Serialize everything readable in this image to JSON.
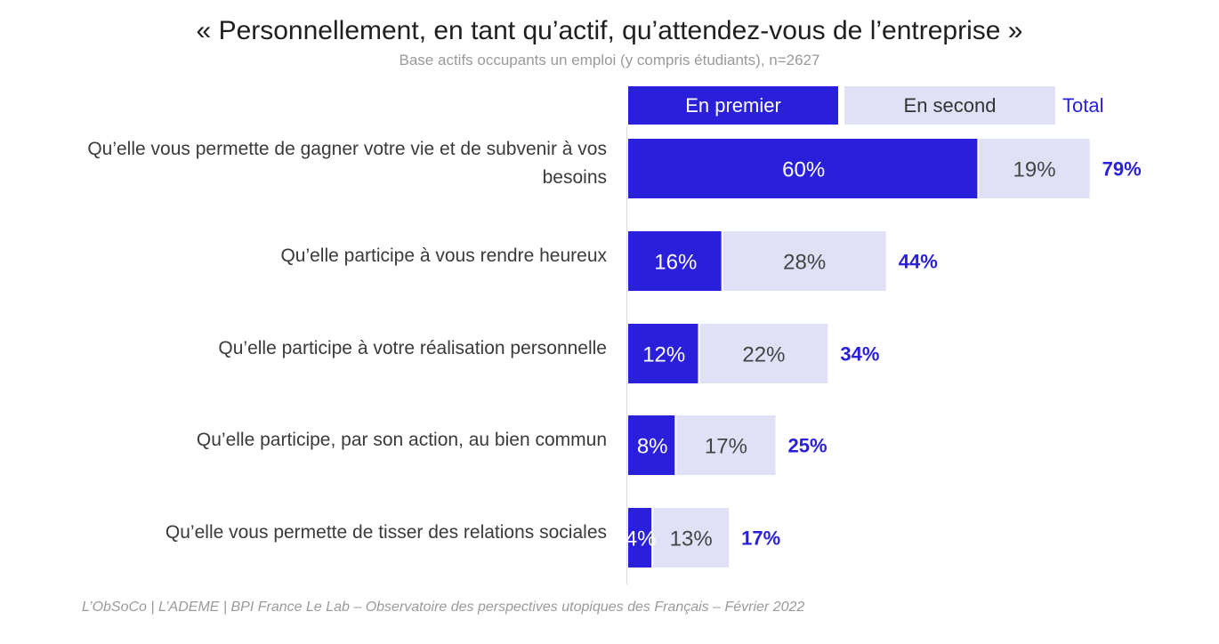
{
  "chart_data": {
    "type": "bar",
    "orientation": "horizontal",
    "stacked": true,
    "title": "« Personnellement, en tant qu’actif, qu’attendez-vous de l’entreprise »",
    "subtitle": "Base actifs occupants un emploi (y compris étudiants), n=2627",
    "legend": {
      "first": "En premier",
      "second": "En second",
      "total": "Total"
    },
    "categories": [
      "Qu’elle vous permette de gagner votre vie et de subvenir à vos besoins",
      "Qu’elle participe à vous rendre heureux",
      "Qu’elle participe à votre réalisation personnelle",
      "Qu’elle participe, par son action, au bien commun",
      "Qu’elle vous permette de tisser des relations sociales"
    ],
    "series": [
      {
        "name": "En premier",
        "color": "#2a20db",
        "values": [
          60,
          16,
          12,
          8,
          4
        ]
      },
      {
        "name": "En second",
        "color": "#e0e1f7",
        "values": [
          19,
          28,
          22,
          17,
          13
        ]
      }
    ],
    "totals": [
      79,
      44,
      34,
      25,
      17
    ],
    "value_suffix": "%",
    "total_color": "#2a20db",
    "xlim": [
      0,
      100
    ]
  },
  "source": "L’ObSoCo | L’ADEME | BPI France Le Lab – Observatoire des perspectives utopiques des Français – Février 2022"
}
